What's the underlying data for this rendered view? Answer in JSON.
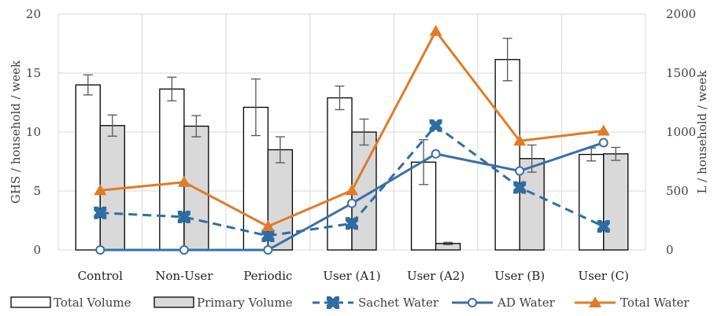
{
  "chart_data": {
    "type": "bar",
    "categories": [
      "Control",
      "Non-User",
      "Periodic",
      "User (A1)",
      "User (A2)",
      "User (B)",
      "User (C)"
    ],
    "ylabel": "GHS / household / week",
    "y2label": "L / household / week",
    "ylim": [
      0,
      20
    ],
    "y2lim": [
      0,
      2000
    ],
    "yticks": [
      0,
      5,
      10,
      15,
      20
    ],
    "y2ticks": [
      0,
      500,
      1000,
      1500,
      2000
    ],
    "grid": true,
    "legend_position": "bottom",
    "bar_series": [
      {
        "name": "Total Volume",
        "axis": "left",
        "color": "#ffffff",
        "values": [
          14.0,
          13.65,
          12.1,
          12.9,
          7.45,
          16.15,
          8.1
        ],
        "errors": [
          0.85,
          1.0,
          2.4,
          1.0,
          1.9,
          1.8,
          0.55
        ]
      },
      {
        "name": "Primary Volume",
        "axis": "left",
        "color": "#d9d9d9",
        "values": [
          10.55,
          10.5,
          8.5,
          10.0,
          0.55,
          7.75,
          8.15
        ],
        "errors": [
          0.9,
          0.9,
          1.1,
          1.1,
          0.1,
          1.15,
          0.55
        ]
      }
    ],
    "line_series": [
      {
        "name": "Sachet Water",
        "axis": "right",
        "color": "#2e6da4",
        "style": "dashed",
        "marker": "square",
        "values": [
          315,
          280,
          120,
          225,
          1055,
          530,
          200
        ]
      },
      {
        "name": "AD Water",
        "axis": "right",
        "color": "#3a6fa8",
        "style": "solid",
        "marker": "circle",
        "values": [
          0,
          0,
          0,
          395,
          815,
          670,
          910
        ]
      },
      {
        "name": "Total Water",
        "axis": "right",
        "color": "#e07b28",
        "style": "solid",
        "marker": "triangle",
        "values": [
          505,
          575,
          200,
          505,
          1855,
          925,
          1010
        ]
      }
    ]
  }
}
